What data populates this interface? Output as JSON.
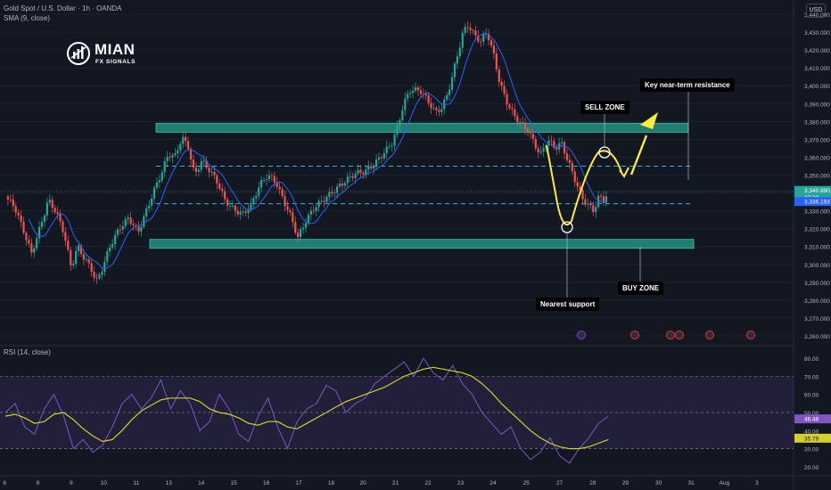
{
  "header": {
    "symbol_line": "Gold Spot / U.S. Dollar · 1h · OANDA",
    "indicator_line": "SMA (9, close)",
    "currency": "USD",
    "rsi_line": "RSI (14, close)"
  },
  "logo": {
    "name": "MIAN",
    "subtitle": "FX SIGNALS"
  },
  "annotations": {
    "sell_zone": "SELL ZONE",
    "buy_zone": "BUY ZONE",
    "key_resistance": "Key near-term resistance",
    "nearest_support": "Nearest support"
  },
  "price_badges": {
    "last_price": "3,340.890",
    "countdown": "27:30",
    "sma_value": "3,336.193"
  },
  "rsi_badges": {
    "rsi_value": "46.48",
    "rsi_ma_value": "35.79"
  },
  "colors": {
    "background": "#131722",
    "candle_up": "#26a69a",
    "candle_down": "#ef5350",
    "zone_fill": "#1f8b7a",
    "sma": "#2962ff",
    "rsi_line": "#7e57c2",
    "rsi_ma": "#d4d02b",
    "projection": "#ffeb3b",
    "dashed_level": "#29b6f6"
  },
  "chart_data": [
    {
      "type": "candlestick",
      "title": "Gold Spot / U.S. Dollar · 1h · OANDA",
      "indicator": "SMA (9, close)",
      "x_tick_labels": [
        "6",
        "8",
        "9",
        "10",
        "11",
        "13",
        "14",
        "15",
        "16",
        "17",
        "18",
        "20",
        "21",
        "22",
        "23",
        "24",
        "25",
        "27",
        "28",
        "29",
        "30",
        "31",
        "Aug",
        "3"
      ],
      "y_tick_labels": [
        "3,260.000",
        "3,270.000",
        "3,280.000",
        "3,290.000",
        "3,300.000",
        "3,310.000",
        "3,320.000",
        "3,330.000",
        "3,340.000",
        "3,350.000",
        "3,360.000",
        "3,370.000",
        "3,380.000",
        "3,390.000",
        "3,400.000",
        "3,410.000",
        "3,420.000",
        "3,430.000",
        "3,440.000"
      ],
      "ylim": [
        3257,
        3444
      ],
      "price_path": [
        [
          0,
          3338
        ],
        [
          0.9,
          3332
        ],
        [
          1.8,
          3318
        ],
        [
          2.5,
          3306
        ],
        [
          3.4,
          3322
        ],
        [
          4.1,
          3336
        ],
        [
          4.8,
          3330
        ],
        [
          5.6,
          3318
        ],
        [
          6.3,
          3298
        ],
        [
          6.9,
          3310
        ],
        [
          7.6,
          3303
        ],
        [
          8.2,
          3298
        ],
        [
          8.7,
          3290
        ],
        [
          9.3,
          3298
        ],
        [
          10.0,
          3310
        ],
        [
          10.9,
          3320
        ],
        [
          11.8,
          3326
        ],
        [
          12.7,
          3318
        ],
        [
          13.5,
          3330
        ],
        [
          14.2,
          3341
        ],
        [
          15.0,
          3352
        ],
        [
          15.6,
          3362
        ],
        [
          16.2,
          3360
        ],
        [
          16.9,
          3371
        ],
        [
          17.5,
          3366
        ],
        [
          18.1,
          3350
        ],
        [
          18.8,
          3358
        ],
        [
          19.5,
          3353
        ],
        [
          20.3,
          3346
        ],
        [
          21.0,
          3336
        ],
        [
          21.8,
          3331
        ],
        [
          22.7,
          3328
        ],
        [
          23.5,
          3333
        ],
        [
          24.3,
          3344
        ],
        [
          25.1,
          3350
        ],
        [
          25.9,
          3346
        ],
        [
          26.6,
          3336
        ],
        [
          27.3,
          3327
        ],
        [
          28.0,
          3315
        ],
        [
          28.8,
          3325
        ],
        [
          29.6,
          3332
        ],
        [
          30.4,
          3336
        ],
        [
          31.4,
          3341
        ],
        [
          32.4,
          3346
        ],
        [
          33.5,
          3351
        ],
        [
          34.4,
          3352
        ],
        [
          35.3,
          3356
        ],
        [
          36.3,
          3363
        ],
        [
          37.0,
          3368
        ],
        [
          37.6,
          3378
        ],
        [
          38.1,
          3390
        ],
        [
          38.8,
          3398
        ],
        [
          39.8,
          3397
        ],
        [
          40.6,
          3390
        ],
        [
          41.2,
          3385
        ],
        [
          41.8,
          3388
        ],
        [
          42.3,
          3395
        ],
        [
          42.8,
          3406
        ],
        [
          43.3,
          3418
        ],
        [
          43.8,
          3430
        ],
        [
          44.3,
          3434
        ],
        [
          44.9,
          3428
        ],
        [
          45.5,
          3425
        ],
        [
          46.1,
          3430
        ],
        [
          46.7,
          3418
        ],
        [
          47.3,
          3402
        ],
        [
          47.9,
          3392
        ],
        [
          48.6,
          3384
        ],
        [
          49.3,
          3379
        ],
        [
          50.0,
          3375
        ],
        [
          50.6,
          3368
        ],
        [
          51.2,
          3361
        ],
        [
          51.9,
          3370
        ],
        [
          52.6,
          3365
        ],
        [
          53.2,
          3368
        ],
        [
          53.9,
          3357
        ],
        [
          54.6,
          3346
        ],
        [
          55.2,
          3337
        ],
        [
          55.8,
          3333
        ],
        [
          56.3,
          3330
        ],
        [
          56.8,
          3338
        ],
        [
          57.3,
          3336
        ],
        [
          57.7,
          3341
        ]
      ],
      "horizontal_levels": [
        3355,
        3334
      ],
      "zones": [
        {
          "low": 3374,
          "high": 3379
        },
        {
          "low": 3309,
          "high": 3314
        }
      ],
      "current_price": 3340.89,
      "sma_value": 3336.193
    },
    {
      "type": "line",
      "title": "RSI (14, close)",
      "series": [
        {
          "name": "RSI",
          "values": [
            50,
            55,
            42,
            38,
            52,
            60,
            48,
            30,
            35,
            28,
            32,
            42,
            55,
            60,
            52,
            58,
            68,
            52,
            62,
            55,
            40,
            45,
            60,
            52,
            38,
            34,
            48,
            58,
            42,
            30,
            45,
            52,
            55,
            65,
            62,
            50,
            55,
            58,
            66,
            70,
            74,
            78,
            70,
            80,
            72,
            68,
            76,
            66,
            60,
            50,
            44,
            38,
            42,
            30,
            24,
            28,
            36,
            26,
            22,
            30,
            36,
            44,
            48
          ]
        },
        {
          "name": "RSI MA",
          "values": [
            48,
            49,
            47,
            44,
            45,
            49,
            50,
            46,
            41,
            37,
            34,
            35,
            40,
            46,
            51,
            54,
            57,
            58,
            58,
            58,
            56,
            52,
            50,
            49,
            47,
            44,
            43,
            45,
            45,
            42,
            41,
            44,
            47,
            50,
            53,
            56,
            58,
            60,
            62,
            64,
            67,
            70,
            72,
            74,
            75,
            74,
            73,
            72,
            70,
            66,
            61,
            55,
            50,
            45,
            40,
            36,
            33,
            31,
            30,
            30,
            31,
            33,
            35
          ]
        }
      ],
      "x_range": [
        0,
        57.7
      ],
      "y_tick_labels": [
        "20.00",
        "30.00",
        "40.00",
        "50.00",
        "60.00",
        "70.00",
        "80.00"
      ],
      "ylim": [
        16,
        85
      ],
      "bands": [
        30,
        50,
        70
      ],
      "rsi_value": 46.48,
      "rsi_ma_value": 35.79
    }
  ]
}
